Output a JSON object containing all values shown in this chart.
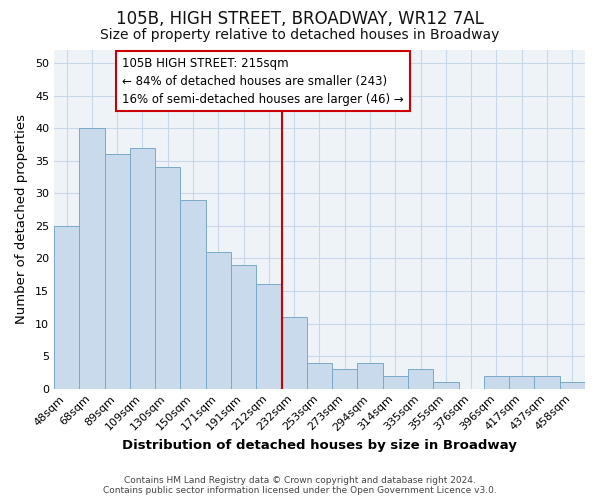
{
  "title": "105B, HIGH STREET, BROADWAY, WR12 7AL",
  "subtitle": "Size of property relative to detached houses in Broadway",
  "xlabel": "Distribution of detached houses by size in Broadway",
  "ylabel": "Number of detached properties",
  "footer_line1": "Contains HM Land Registry data © Crown copyright and database right 2024.",
  "footer_line2": "Contains public sector information licensed under the Open Government Licence v3.0.",
  "bar_labels": [
    "48sqm",
    "68sqm",
    "89sqm",
    "109sqm",
    "130sqm",
    "150sqm",
    "171sqm",
    "191sqm",
    "212sqm",
    "232sqm",
    "253sqm",
    "273sqm",
    "294sqm",
    "314sqm",
    "335sqm",
    "355sqm",
    "376sqm",
    "396sqm",
    "417sqm",
    "437sqm",
    "458sqm"
  ],
  "bar_values": [
    25,
    40,
    36,
    37,
    34,
    29,
    21,
    19,
    16,
    11,
    4,
    3,
    4,
    2,
    3,
    1,
    0,
    2,
    2,
    2,
    1
  ],
  "bar_color": "#c8daeb",
  "bar_edge_color": "#7aaac8",
  "vline_x": 8.5,
  "vline_color": "#cc0000",
  "annotation_title": "105B HIGH STREET: 215sqm",
  "annotation_line2": "← 84% of detached houses are smaller (243)",
  "annotation_line3": "16% of semi-detached houses are larger (46) →",
  "annotation_box_edge_color": "#cc0000",
  "annotation_box_face_color": "#ffffff",
  "ylim": [
    0,
    52
  ],
  "yticks": [
    0,
    5,
    10,
    15,
    20,
    25,
    30,
    35,
    40,
    45,
    50
  ],
  "grid_color": "#c8d8e8",
  "background_color": "#ffffff",
  "plot_bg_color": "#eef3f8",
  "title_fontsize": 12,
  "subtitle_fontsize": 10,
  "axis_label_fontsize": 9.5,
  "tick_fontsize": 8,
  "annotation_fontsize": 8.5,
  "footer_fontsize": 6.5
}
